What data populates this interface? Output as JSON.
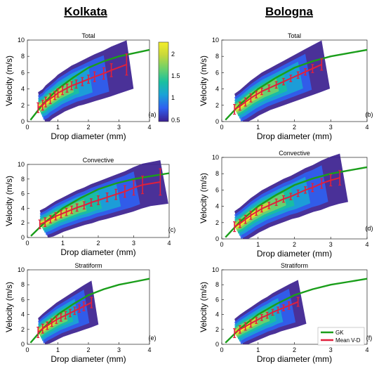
{
  "headers": {
    "left": "Kolkata",
    "right": "Bologna"
  },
  "colorbar": {
    "ticks": [
      "2",
      "1.5",
      "1",
      "0.5"
    ],
    "colors": [
      "#3b1f8f",
      "#2f5ff0",
      "#1aa3d6",
      "#19c0a0",
      "#6fd16a",
      "#c8d83a",
      "#f4ee2a"
    ]
  },
  "legend": {
    "items": [
      {
        "name": "GK",
        "color": "#1a9e1a"
      },
      {
        "name": "Mean V-D",
        "color": "#e0203c"
      }
    ]
  },
  "colors": {
    "gk": "#1a9e1a",
    "mean": "#e0203c"
  },
  "chart_data": [
    {
      "id": "a",
      "type": "line",
      "title": "Total",
      "panel_label": "(a)",
      "xlabel": "Drop diameter (mm)",
      "ylabel": "Velocity (m/s)",
      "xlim": [
        0,
        4
      ],
      "ylim": [
        0,
        10
      ],
      "xticks": [
        "0",
        "1",
        "2",
        "3",
        "4"
      ],
      "yticks": [
        "0",
        "2",
        "4",
        "6",
        "8",
        "10"
      ],
      "series": [
        {
          "name": "GK",
          "x": [
            0.1,
            0.5,
            1.0,
            1.5,
            2.0,
            2.5,
            3.0,
            3.5,
            4.0
          ],
          "y": [
            0.2,
            2.1,
            4.0,
            5.4,
            6.6,
            7.4,
            8.0,
            8.4,
            8.8
          ]
        },
        {
          "name": "Mean V-D",
          "x": [
            0.35,
            0.5,
            0.6,
            0.75,
            0.9,
            1.0,
            1.15,
            1.3,
            1.45,
            1.6,
            1.8,
            2.0,
            2.2,
            2.5,
            2.75,
            3.25
          ],
          "y": [
            1.7,
            2.0,
            2.4,
            2.8,
            3.2,
            3.5,
            3.8,
            4.1,
            4.4,
            4.6,
            4.9,
            5.2,
            5.5,
            5.9,
            6.3,
            7.0
          ],
          "err": [
            0.6,
            0.6,
            0.6,
            0.6,
            0.5,
            0.5,
            0.5,
            0.5,
            0.5,
            0.5,
            0.5,
            0.5,
            0.6,
            0.7,
            0.8,
            1.3
          ]
        }
      ]
    },
    {
      "id": "b",
      "type": "line",
      "title": "Total",
      "panel_label": "(b)",
      "xlabel": "Drop diameter (mm)",
      "ylabel": "Velocity (m/s)",
      "xlim": [
        0,
        4
      ],
      "ylim": [
        0,
        10
      ],
      "xticks": [
        "0",
        "1",
        "2",
        "3",
        "4"
      ],
      "yticks": [
        "0",
        "2",
        "4",
        "6",
        "8",
        "10"
      ],
      "series": [
        {
          "name": "GK",
          "x": [
            0.1,
            0.5,
            1.0,
            1.5,
            2.0,
            2.5,
            3.0,
            3.5,
            4.0
          ],
          "y": [
            0.2,
            2.1,
            4.0,
            5.4,
            6.6,
            7.4,
            8.0,
            8.4,
            8.8
          ]
        },
        {
          "name": "Mean V-D",
          "x": [
            0.35,
            0.5,
            0.65,
            0.8,
            0.95,
            1.1,
            1.3,
            1.5,
            1.7,
            1.9,
            2.1,
            2.3,
            2.5,
            2.75
          ],
          "y": [
            1.5,
            1.9,
            2.4,
            2.9,
            3.3,
            3.7,
            4.1,
            4.5,
            4.9,
            5.3,
            5.7,
            6.1,
            6.5,
            7.0
          ],
          "err": [
            0.6,
            0.5,
            0.5,
            0.5,
            0.4,
            0.4,
            0.4,
            0.4,
            0.4,
            0.4,
            0.4,
            0.4,
            0.5,
            0.7
          ]
        }
      ]
    },
    {
      "id": "c",
      "type": "line",
      "title": "Convective",
      "panel_label": "(c)",
      "xlabel": "Drop diameter (mm)",
      "ylabel": "Velocity (m/s)",
      "xlim": [
        0,
        4
      ],
      "ylim": [
        0,
        10
      ],
      "xticks": [
        "0",
        "1",
        "2",
        "3",
        "4"
      ],
      "yticks": [
        "0",
        "2",
        "4",
        "6",
        "8",
        "10"
      ],
      "series": [
        {
          "name": "GK",
          "x": [
            0.1,
            0.5,
            1.0,
            1.5,
            2.0,
            2.5,
            3.0,
            3.5,
            4.0
          ],
          "y": [
            0.2,
            2.1,
            4.0,
            5.4,
            6.6,
            7.4,
            8.0,
            8.4,
            8.8
          ]
        },
        {
          "name": "Mean V-D",
          "x": [
            0.35,
            0.5,
            0.65,
            0.8,
            0.95,
            1.1,
            1.25,
            1.4,
            1.6,
            1.8,
            2.0,
            2.25,
            2.5,
            2.75,
            3.0,
            3.25,
            3.75
          ],
          "y": [
            1.8,
            2.1,
            2.5,
            2.9,
            3.2,
            3.5,
            3.8,
            4.1,
            4.4,
            4.8,
            5.1,
            5.5,
            5.9,
            6.3,
            6.8,
            7.2,
            7.6
          ],
          "err": [
            0.6,
            0.6,
            0.5,
            0.5,
            0.5,
            0.5,
            0.5,
            0.5,
            0.5,
            0.5,
            0.6,
            0.6,
            0.7,
            0.8,
            1.0,
            1.2,
            1.8
          ]
        }
      ]
    },
    {
      "id": "d",
      "type": "line",
      "title": "Convective",
      "panel_label": "(d)",
      "xlabel": "Drop diameter (mm)",
      "ylabel": "Velocity (m/s)",
      "xlim": [
        0,
        4
      ],
      "ylim": [
        0,
        10
      ],
      "xticks": [
        "0",
        "1",
        "2",
        "3",
        "4"
      ],
      "yticks": [
        "0",
        "2",
        "4",
        "6",
        "8",
        "10"
      ],
      "series": [
        {
          "name": "GK",
          "x": [
            0.1,
            0.5,
            1.0,
            1.5,
            2.0,
            2.5,
            3.0,
            3.5,
            4.0
          ],
          "y": [
            0.2,
            2.1,
            4.0,
            5.4,
            6.6,
            7.4,
            8.0,
            8.4,
            8.8
          ]
        },
        {
          "name": "Mean V-D",
          "x": [
            0.35,
            0.5,
            0.65,
            0.8,
            0.95,
            1.1,
            1.3,
            1.5,
            1.7,
            1.9,
            2.1,
            2.3,
            2.5,
            2.75,
            3.0,
            3.25
          ],
          "y": [
            1.5,
            1.9,
            2.4,
            2.9,
            3.3,
            3.7,
            4.1,
            4.5,
            4.9,
            5.2,
            5.6,
            6.0,
            6.3,
            6.8,
            7.2,
            7.5
          ],
          "err": [
            0.6,
            0.5,
            0.5,
            0.5,
            0.4,
            0.4,
            0.4,
            0.4,
            0.4,
            0.4,
            0.4,
            0.4,
            0.5,
            0.6,
            0.7,
            0.9
          ]
        }
      ]
    },
    {
      "id": "e",
      "type": "line",
      "title": "Stratiform",
      "panel_label": "(e)",
      "xlabel": "Drop diameter (mm)",
      "ylabel": "Velocity (m/s)",
      "xlim": [
        0,
        4
      ],
      "ylim": [
        0,
        10
      ],
      "xticks": [
        "0",
        "1",
        "2",
        "3",
        "4"
      ],
      "yticks": [
        "0",
        "2",
        "4",
        "6",
        "8",
        "10"
      ],
      "series": [
        {
          "name": "GK",
          "x": [
            0.1,
            0.5,
            1.0,
            1.5,
            2.0,
            2.5,
            3.0,
            3.5,
            4.0
          ],
          "y": [
            0.2,
            2.1,
            4.0,
            5.4,
            6.6,
            7.4,
            8.0,
            8.4,
            8.8
          ]
        },
        {
          "name": "Mean V-D",
          "x": [
            0.35,
            0.5,
            0.65,
            0.8,
            0.95,
            1.1,
            1.25,
            1.4,
            1.55,
            1.7,
            1.85,
            2.1
          ],
          "y": [
            1.6,
            2.1,
            2.5,
            2.9,
            3.3,
            3.6,
            3.9,
            4.2,
            4.5,
            4.8,
            5.1,
            5.6
          ],
          "err": [
            0.7,
            0.6,
            0.5,
            0.5,
            0.5,
            0.5,
            0.5,
            0.5,
            0.5,
            0.5,
            0.6,
            0.7
          ]
        }
      ]
    },
    {
      "id": "f",
      "type": "line",
      "title": "Stratiform",
      "panel_label": "(f)",
      "xlabel": "Drop diameter (mm)",
      "ylabel": "Velocity (m/s)",
      "xlim": [
        0,
        4
      ],
      "ylim": [
        0,
        10
      ],
      "xticks": [
        "0",
        "1",
        "2",
        "3",
        "4"
      ],
      "yticks": [
        "0",
        "2",
        "4",
        "6",
        "8",
        "10"
      ],
      "series": [
        {
          "name": "GK",
          "x": [
            0.1,
            0.5,
            1.0,
            1.5,
            2.0,
            2.5,
            3.0,
            3.5,
            4.0
          ],
          "y": [
            0.2,
            2.1,
            4.0,
            5.4,
            6.6,
            7.4,
            8.0,
            8.4,
            8.8
          ]
        },
        {
          "name": "Mean V-D",
          "x": [
            0.35,
            0.5,
            0.65,
            0.8,
            0.95,
            1.1,
            1.25,
            1.4,
            1.55,
            1.7,
            1.85,
            2.1
          ],
          "y": [
            1.5,
            2.0,
            2.4,
            2.8,
            3.2,
            3.6,
            3.9,
            4.3,
            4.6,
            4.9,
            5.2,
            5.7
          ],
          "err": [
            0.6,
            0.5,
            0.5,
            0.5,
            0.4,
            0.4,
            0.4,
            0.4,
            0.4,
            0.4,
            0.5,
            0.6
          ]
        }
      ]
    }
  ]
}
